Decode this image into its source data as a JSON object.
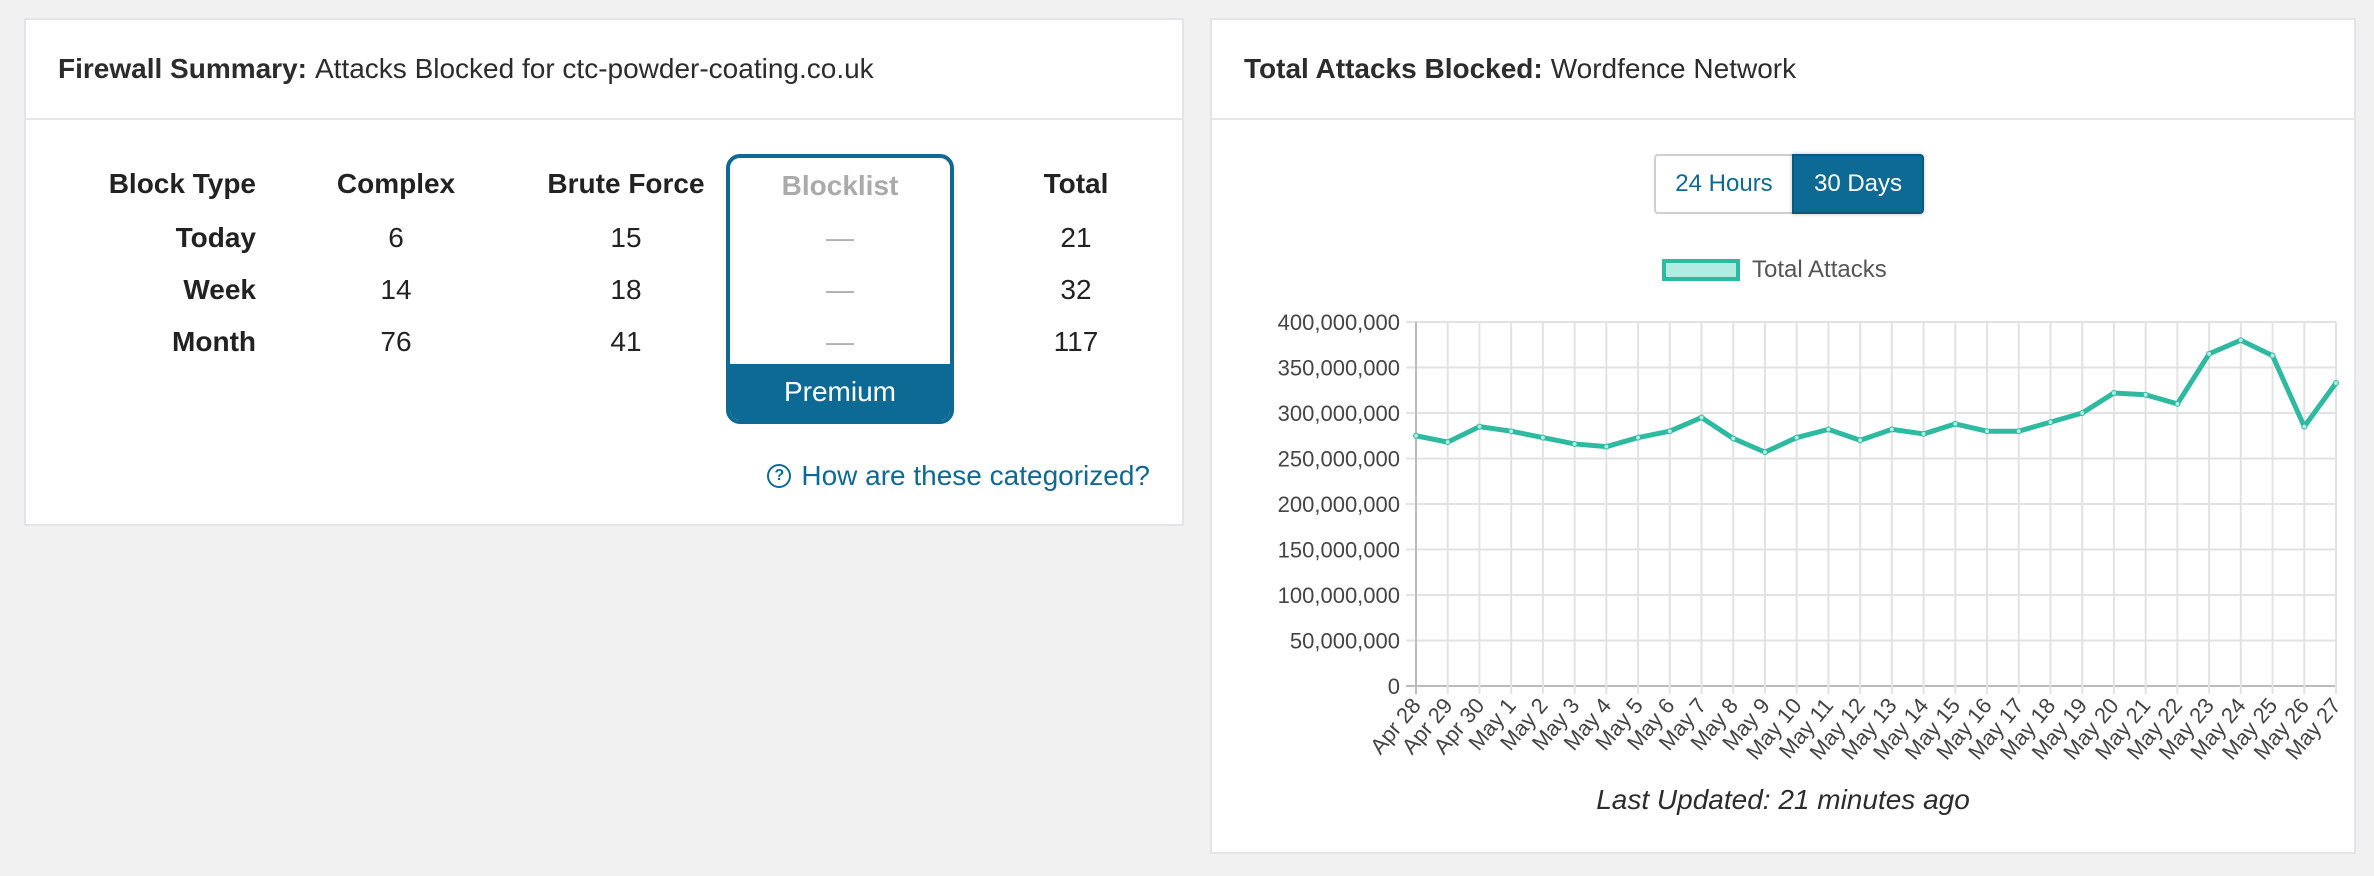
{
  "left_panel": {
    "title_bold": "Firewall Summary:",
    "title_rest": "Attacks Blocked for ctc-powder-coating.co.uk",
    "headers": {
      "block_type": "Block Type",
      "complex": "Complex",
      "brute_force": "Brute Force",
      "blocklist": "Blocklist",
      "total": "Total"
    },
    "rows": [
      {
        "label": "Today",
        "complex": "6",
        "brute_force": "15",
        "blocklist": "—",
        "total": "21"
      },
      {
        "label": "Week",
        "complex": "14",
        "brute_force": "18",
        "blocklist": "—",
        "total": "32"
      },
      {
        "label": "Month",
        "complex": "76",
        "brute_force": "41",
        "blocklist": "—",
        "total": "117"
      }
    ],
    "premium_label": "Premium",
    "help_icon_text": "?",
    "help_link": "How are these categorized?"
  },
  "right_panel": {
    "title_bold": "Total Attacks Blocked:",
    "title_rest": "Wordfence Network",
    "toggle": {
      "option_24h": "24 Hours",
      "option_30d": "30 Days",
      "selected": "30 Days"
    },
    "last_updated": "Last Updated: 21 minutes ago"
  },
  "chart_data": {
    "type": "line",
    "categories": [
      "Apr 28",
      "Apr 29",
      "Apr 30",
      "May 1",
      "May 2",
      "May 3",
      "May 4",
      "May 5",
      "May 6",
      "May 7",
      "May 8",
      "May 9",
      "May 10",
      "May 11",
      "May 12",
      "May 13",
      "May 14",
      "May 15",
      "May 16",
      "May 17",
      "May 18",
      "May 19",
      "May 20",
      "May 21",
      "May 22",
      "May 23",
      "May 24",
      "May 25",
      "May 26",
      "May 27"
    ],
    "series": [
      {
        "name": "Total Attacks",
        "values": [
          275000000,
          268000000,
          285000000,
          280000000,
          273000000,
          266000000,
          263000000,
          273000000,
          280000000,
          295000000,
          272000000,
          257000000,
          273000000,
          282000000,
          270000000,
          282000000,
          277000000,
          288000000,
          280000000,
          280000000,
          290000000,
          300000000,
          322000000,
          320000000,
          310000000,
          365000000,
          380000000,
          363000000,
          285000000,
          333000000
        ]
      }
    ],
    "ylim": [
      0,
      400000000
    ],
    "yticks": [
      "0",
      "50,000,000",
      "100,000,000",
      "150,000,000",
      "200,000,000",
      "250,000,000",
      "300,000,000",
      "350,000,000",
      "400,000,000"
    ],
    "grid": true,
    "legend": "top-center",
    "colors": {
      "line": "#2dbaa0",
      "fill": "#b2ebe1"
    }
  }
}
